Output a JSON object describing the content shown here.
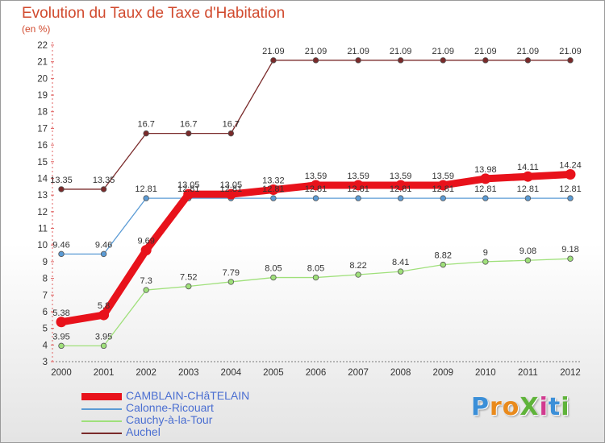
{
  "chart_data": {
    "type": "line",
    "title": "Evolution du Taux de Taxe d'Habitation",
    "subtitle": "(en %)",
    "xlabel": "",
    "ylabel": "",
    "ylim": [
      3,
      22
    ],
    "grid": false,
    "legend_position": "bottom-left",
    "categories": [
      "2000",
      "2001",
      "2002",
      "2003",
      "2004",
      "2005",
      "2006",
      "2007",
      "2008",
      "2009",
      "2010",
      "2011",
      "2012"
    ],
    "yticks": [
      3,
      4,
      5,
      6,
      7,
      8,
      9,
      10,
      11,
      12,
      13,
      14,
      15,
      16,
      17,
      18,
      19,
      20,
      21,
      22
    ],
    "series": [
      {
        "name": "CAMBLAIN-CHâTELAIN",
        "color": "#e8121b",
        "values": [
          5.38,
          5.8,
          9.69,
          13.05,
          13.05,
          13.32,
          13.59,
          13.59,
          13.59,
          13.59,
          13.98,
          14.11,
          14.24
        ],
        "labels": [
          "5.38",
          "5.8",
          "9.69",
          "13.05",
          "13.05",
          "13.32",
          "13.59",
          "13.59",
          "13.59",
          "13.59",
          "13.98",
          "14.11",
          "14.24"
        ]
      },
      {
        "name": "Calonne-Ricouart",
        "color": "#5b9bd5",
        "values": [
          9.46,
          9.46,
          12.81,
          12.81,
          12.81,
          12.81,
          12.81,
          12.81,
          12.81,
          12.81,
          12.81,
          12.81,
          12.81
        ],
        "labels": [
          "9.46",
          "9.46",
          "12.81",
          "12.81",
          "12.81",
          "12.81",
          "12.81",
          "12.81",
          "12.81",
          "12.81",
          "12.81",
          "12.81",
          "12.81"
        ]
      },
      {
        "name": "Cauchy-à-la-Tour",
        "color": "#9fe07a",
        "values": [
          3.95,
          3.95,
          7.3,
          7.52,
          7.79,
          8.05,
          8.05,
          8.22,
          8.41,
          8.82,
          9,
          9.08,
          9.18
        ],
        "labels": [
          "3.95",
          "3.95",
          "7.3",
          "7.52",
          "7.79",
          "8.05",
          "8.05",
          "8.22",
          "8.41",
          "8.82",
          "9",
          "9.08",
          "9.18"
        ]
      },
      {
        "name": "Auchel",
        "color": "#7a2a2a",
        "values": [
          13.35,
          13.35,
          16.7,
          16.7,
          16.7,
          21.09,
          21.09,
          21.09,
          21.09,
          21.09,
          21.09,
          21.09,
          21.09
        ],
        "labels": [
          "13.35",
          "13.35",
          "16.7",
          "16.7",
          "16.7",
          "21.09",
          "21.09",
          "21.09",
          "21.09",
          "21.09",
          "21.09",
          "21.09",
          "21.09"
        ]
      }
    ]
  },
  "logo": {
    "text": "ProXiti"
  }
}
